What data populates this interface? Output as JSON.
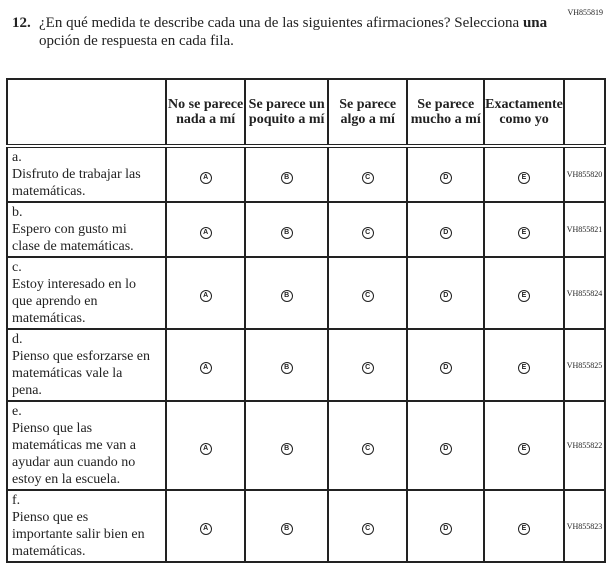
{
  "question": {
    "id": "VH855819",
    "number": "12.",
    "text_before": "¿En qué medida te describe cada una de las siguientes afirmaciones? Selecciona ",
    "text_bold": "una",
    "text_after": " opción de respuesta en cada fila."
  },
  "columns": [
    "No se parece nada a mí",
    "Se parece un poquito a mí",
    "Se parece algo a mí",
    "Se parece mucho a mí",
    "Exactamente como yo"
  ],
  "bubbles": [
    "A",
    "B",
    "C",
    "D",
    "E"
  ],
  "rows": [
    {
      "letter": "a.",
      "text": "Disfruto de trabajar las matemáticas.",
      "id": "VH855820"
    },
    {
      "letter": "b.",
      "text": "Espero con gusto mi clase de matemáticas.",
      "id": "VH855821"
    },
    {
      "letter": "c.",
      "text": "Estoy interesado en lo que aprendo en matemáticas.",
      "id": "VH855824"
    },
    {
      "letter": "d.",
      "text": "Pienso que esforzarse en matemáticas vale la pena.",
      "id": "VH855825"
    },
    {
      "letter": "e.",
      "text": "Pienso que las matemáticas me van a ayudar aun cuando no estoy en la escuela.",
      "id": "VH855822"
    },
    {
      "letter": "f.",
      "text": "Pienso que es importante salir bien en matemáticas.",
      "id": "VH855823"
    }
  ]
}
